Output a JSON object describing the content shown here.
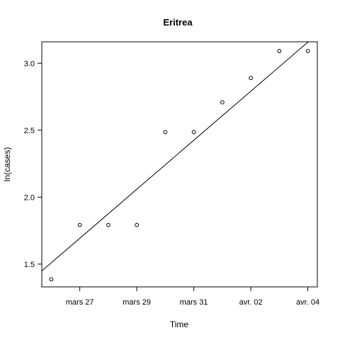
{
  "chart_data": {
    "type": "scatter",
    "title": "Eritrea",
    "xlabel": "Time",
    "ylabel": "ln(cases)",
    "x_tick_labels": [
      "mars 27",
      "mars 29",
      "mars 31",
      "avr. 02",
      "avr. 04"
    ],
    "x_tick_dates": [
      "2020-03-27",
      "2020-03-29",
      "2020-03-31",
      "2020-04-02",
      "2020-04-04"
    ],
    "y_ticks": [
      1.5,
      2.0,
      2.5,
      3.0
    ],
    "y_tick_labels": [
      "1.5",
      "2.0",
      "2.5",
      "3.0"
    ],
    "xlim": [
      "2020-03-25T16:00",
      "2020-04-04T08:00"
    ],
    "ylim": [
      1.33,
      3.16
    ],
    "x": [
      "2020-03-26",
      "2020-03-27",
      "2020-03-28",
      "2020-03-29",
      "2020-03-30",
      "2020-03-31",
      "2020-04-01",
      "2020-04-02",
      "2020-04-03",
      "2020-04-04"
    ],
    "y": [
      1.386,
      1.792,
      1.792,
      1.792,
      2.485,
      2.485,
      2.708,
      2.89,
      3.091,
      3.091
    ],
    "regression_line": {
      "intercept_at": "2020-03-26",
      "intercept": 1.51,
      "slope_per_day": 0.183
    },
    "grid": false
  }
}
